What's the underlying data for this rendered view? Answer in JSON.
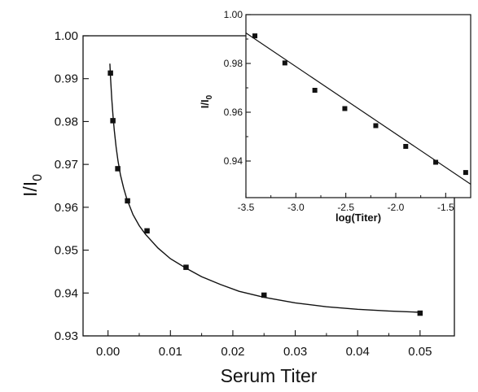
{
  "chart_data": [
    {
      "type": "scatter",
      "title": "",
      "xlabel": "Serum Titer",
      "ylabel": "I/I",
      "ylabel_subscript": "0",
      "xlim": [
        -0.004,
        0.0555
      ],
      "ylim": [
        0.93,
        1.0
      ],
      "x_ticks": [
        0.0,
        0.01,
        0.02,
        0.03,
        0.04,
        0.05
      ],
      "x_tick_labels": [
        "0.00",
        "0.01",
        "0.02",
        "0.03",
        "0.04",
        "0.05"
      ],
      "y_ticks": [
        0.93,
        0.94,
        0.95,
        0.96,
        0.97,
        0.98,
        0.99,
        1.0
      ],
      "y_tick_labels": [
        "0.93",
        "0.94",
        "0.95",
        "0.96",
        "0.97",
        "0.98",
        "0.99",
        "1.00"
      ],
      "series": [
        {
          "marker": "square",
          "x": [
            0.00039,
            0.00078,
            0.00156,
            0.003125,
            0.00625,
            0.0125,
            0.025,
            0.05
          ],
          "y": [
            0.9913,
            0.9802,
            0.969,
            0.9615,
            0.9545,
            0.946,
            0.9395,
            0.9353
          ]
        }
      ],
      "fit_curve": {
        "style": "solid line",
        "x": [
          0.0003,
          0.0004,
          0.0006,
          0.0008,
          0.001,
          0.0013,
          0.0016,
          0.002,
          0.0025,
          0.003,
          0.004,
          0.005,
          0.006,
          0.008,
          0.01,
          0.0125,
          0.015,
          0.018,
          0.021,
          0.025,
          0.03,
          0.035,
          0.04,
          0.045,
          0.05
        ],
        "y": [
          0.9935,
          0.9903,
          0.9853,
          0.9813,
          0.978,
          0.974,
          0.9708,
          0.9675,
          0.9645,
          0.962,
          0.9583,
          0.9557,
          0.9537,
          0.9505,
          0.948,
          0.9458,
          0.9438,
          0.942,
          0.9404,
          0.939,
          0.9377,
          0.9368,
          0.9362,
          0.9358,
          0.9355
        ]
      },
      "grid": false,
      "legend": "none"
    },
    {
      "type": "scatter",
      "inset": true,
      "title": "",
      "xlabel": "log(Titer)",
      "ylabel": "I/I",
      "ylabel_subscript": "0",
      "xlim": [
        -3.5,
        -1.25
      ],
      "ylim": [
        0.925,
        1.0
      ],
      "x_ticks": [
        -3.5,
        -3.0,
        -2.5,
        -2.0,
        -1.5
      ],
      "x_tick_labels": [
        "-3.5",
        "-3.0",
        "-2.5",
        "-2.0",
        "-1.5"
      ],
      "y_ticks": [
        0.94,
        0.96,
        0.98,
        1.0
      ],
      "y_tick_labels": [
        "0.94",
        "0.96",
        "0.98",
        "1.00"
      ],
      "series": [
        {
          "marker": "square",
          "x": [
            -3.41,
            -3.11,
            -2.81,
            -2.51,
            -2.2,
            -1.9,
            -1.6,
            -1.3
          ],
          "y": [
            0.9913,
            0.9802,
            0.969,
            0.9615,
            0.9545,
            0.946,
            0.9395,
            0.9353
          ]
        }
      ],
      "fit_line": {
        "style": "solid line",
        "x": [
          -3.5,
          -1.25
        ],
        "y": [
          0.9925,
          0.9305
        ]
      },
      "grid": false,
      "legend": "none"
    }
  ]
}
